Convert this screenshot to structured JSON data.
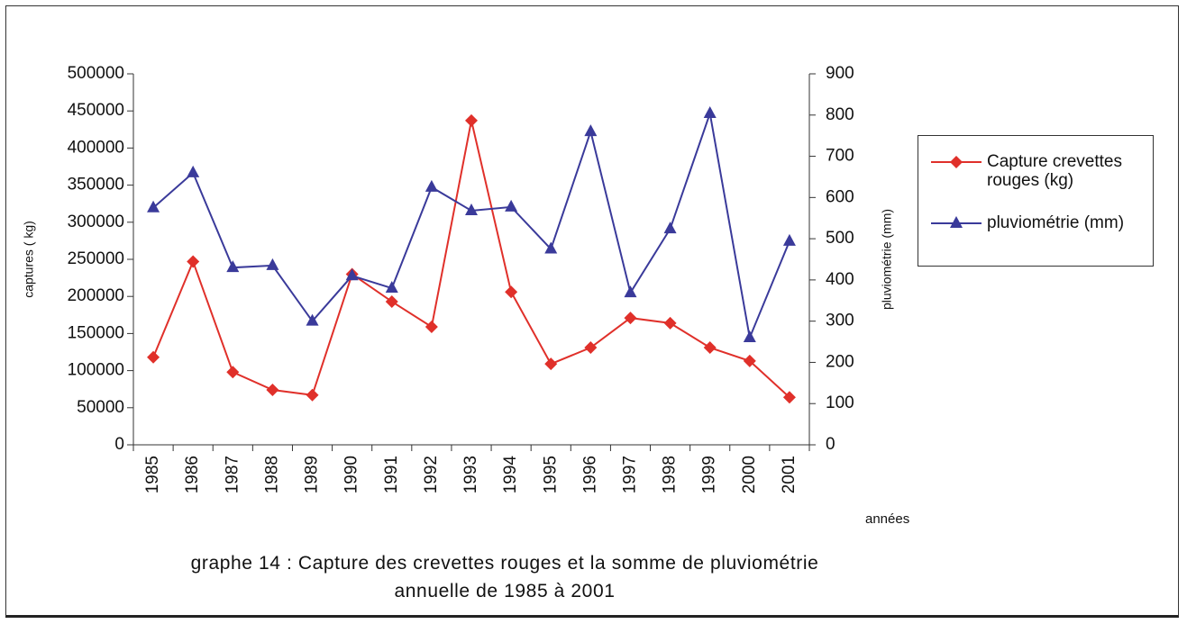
{
  "chart_data": {
    "type": "line",
    "title": "graphe 14 : Capture des crevettes rouges et la somme de pluviométrie annuelle de 1985 à 2001",
    "x_label": "années",
    "y_label": "captures ( kg)",
    "y2_label": "pluviométrie (mm)",
    "categories": [
      "1985",
      "1986",
      "1987",
      "1988",
      "1989",
      "1990",
      "1991",
      "1992",
      "1993",
      "1994",
      "1995",
      "1996",
      "1997",
      "1998",
      "1999",
      "2000",
      "2001"
    ],
    "series": [
      {
        "name": "Capture crevettes rouges (kg)",
        "color": "#e0302a",
        "marker": "diamond",
        "values": [
          118000,
          247000,
          98000,
          74000,
          67000,
          230000,
          193000,
          159000,
          437000,
          206000,
          109000,
          131000,
          171000,
          164000,
          131000,
          113000,
          64000
        ]
      },
      {
        "name": "pluviométrie (mm)",
        "color": "#3a3a9a",
        "marker": "triangle",
        "axis": "y2",
        "values": [
          575,
          660,
          430,
          435,
          300,
          410,
          380,
          625,
          568,
          577,
          475,
          760,
          369,
          524,
          804,
          260,
          494
        ]
      }
    ],
    "ylim": [
      0,
      500000
    ],
    "yticks": [
      0,
      50000,
      100000,
      150000,
      200000,
      250000,
      300000,
      350000,
      400000,
      450000,
      500000
    ],
    "y2lim": [
      0,
      900
    ],
    "y2ticks": [
      0,
      100,
      200,
      300,
      400,
      500,
      600,
      700,
      800,
      900
    ],
    "grid": false,
    "legend": "right"
  }
}
